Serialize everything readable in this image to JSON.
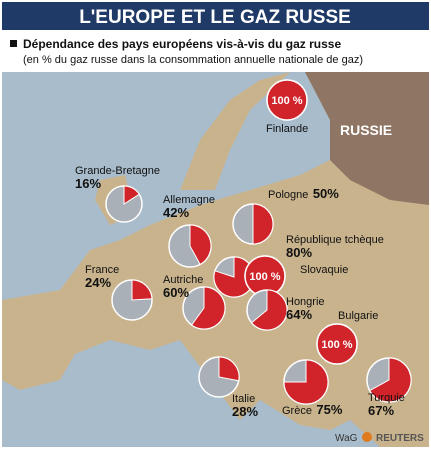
{
  "header": {
    "title": "L'EUROPE ET LE GAZ RUSSE",
    "subtitle": "Dépendance des pays européens vis-à-vis du gaz russe",
    "note": "(en % du gaz russe dans la consommation annuelle nationale de gaz)"
  },
  "map": {
    "region_label": "RUSSIE",
    "countries": [
      {
        "name": "Finlande",
        "value": 100,
        "label": "100 %"
      },
      {
        "name": "Grande-Bretagne",
        "value": 16,
        "label": "16%"
      },
      {
        "name": "Allemagne",
        "value": 42,
        "label": "42%"
      },
      {
        "name": "Pologne",
        "value": 50,
        "label": "50%"
      },
      {
        "name": "République tchèque",
        "value": 80,
        "label": "80%"
      },
      {
        "name": "Slovaquie",
        "value": 100,
        "label": "100 %"
      },
      {
        "name": "France",
        "value": 24,
        "label": "24%"
      },
      {
        "name": "Autriche",
        "value": 60,
        "label": "60%"
      },
      {
        "name": "Hongrie",
        "value": 64,
        "label": "64%"
      },
      {
        "name": "Bulgarie",
        "value": 100,
        "label": "100 %"
      },
      {
        "name": "Italie",
        "value": 28,
        "label": "28%"
      },
      {
        "name": "Grèce",
        "value": 75,
        "label": "75%"
      },
      {
        "name": "Turquie",
        "value": 67,
        "label": "67%"
      }
    ]
  },
  "credits": {
    "agency": "WaG",
    "source": "REUTERS"
  }
}
